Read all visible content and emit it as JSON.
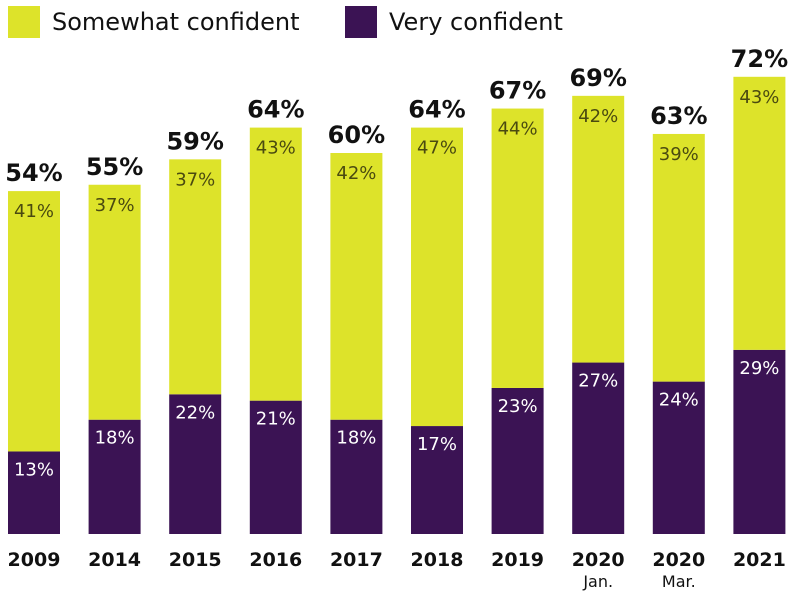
{
  "colors": {
    "somewhat": "#dde32a",
    "very": "#3b1354",
    "segment_label": "#4a4a10",
    "segment_label_dark": "#ffffff",
    "text": "#111111"
  },
  "chart_data": {
    "type": "bar",
    "stacked": true,
    "categories": [
      "2009",
      "2014",
      "2015",
      "2016",
      "2017",
      "2018",
      "2019",
      "2020",
      "2020",
      "2021"
    ],
    "category_sublabels": [
      "",
      "",
      "",
      "",
      "",
      "",
      "",
      "Jan.",
      "Mar.",
      ""
    ],
    "series": [
      {
        "name": "Very confident",
        "color": "#3b1354",
        "values": [
          13,
          18,
          22,
          21,
          18,
          17,
          23,
          27,
          24,
          29
        ]
      },
      {
        "name": "Somewhat confident",
        "color": "#dde32a",
        "values": [
          41,
          37,
          37,
          43,
          42,
          47,
          44,
          42,
          39,
          43
        ]
      }
    ],
    "totals": [
      54,
      55,
      59,
      64,
      60,
      64,
      67,
      69,
      63,
      72
    ],
    "value_suffix": "%",
    "legend": {
      "position": "top-left",
      "entries": [
        "Somewhat confident",
        "Very confident"
      ]
    },
    "ylim": [
      0,
      72
    ],
    "grid": false
  }
}
